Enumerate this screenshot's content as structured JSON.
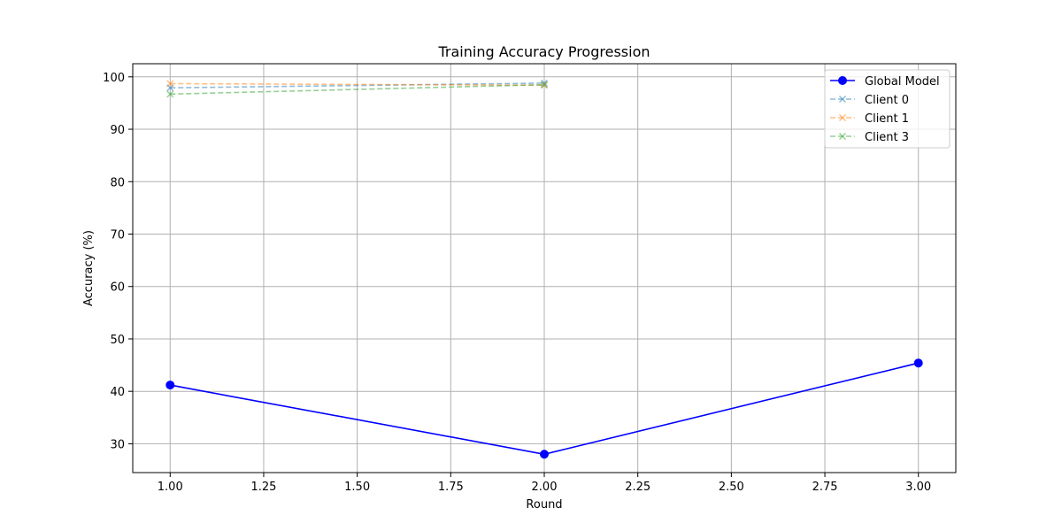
{
  "chart_data": {
    "type": "line",
    "title": "Training Accuracy Progression",
    "xlabel": "Round",
    "ylabel": "Accuracy (%)",
    "xlim": [
      0.9,
      3.1
    ],
    "ylim": [
      24.5,
      102.5
    ],
    "xticks": [
      1.0,
      1.25,
      1.5,
      1.75,
      2.0,
      2.25,
      2.5,
      2.75,
      3.0
    ],
    "xtick_labels": [
      "1.00",
      "1.25",
      "1.50",
      "1.75",
      "2.00",
      "2.25",
      "2.50",
      "2.75",
      "3.00"
    ],
    "yticks": [
      30,
      40,
      50,
      60,
      70,
      80,
      90,
      100
    ],
    "ytick_labels": [
      "30",
      "40",
      "50",
      "60",
      "70",
      "80",
      "90",
      "100"
    ],
    "grid": true,
    "legend_position": "top-right",
    "series": [
      {
        "name": "Global Model",
        "x": [
          1,
          2,
          3
        ],
        "y": [
          41.2,
          28.0,
          45.4
        ],
        "color": "#0000ff",
        "style": "solid",
        "marker": "circle"
      },
      {
        "name": "Client 0",
        "x": [
          1,
          2
        ],
        "y": [
          97.9,
          98.8
        ],
        "color": "#1f77b4",
        "style": "dashed",
        "marker": "x"
      },
      {
        "name": "Client 1",
        "x": [
          1,
          2
        ],
        "y": [
          98.7,
          98.4
        ],
        "color": "#ff7f0e",
        "style": "dashed",
        "marker": "x"
      },
      {
        "name": "Client 3",
        "x": [
          1,
          2
        ],
        "y": [
          96.7,
          98.5
        ],
        "color": "#2ca02c",
        "style": "dashed",
        "marker": "x"
      }
    ]
  }
}
